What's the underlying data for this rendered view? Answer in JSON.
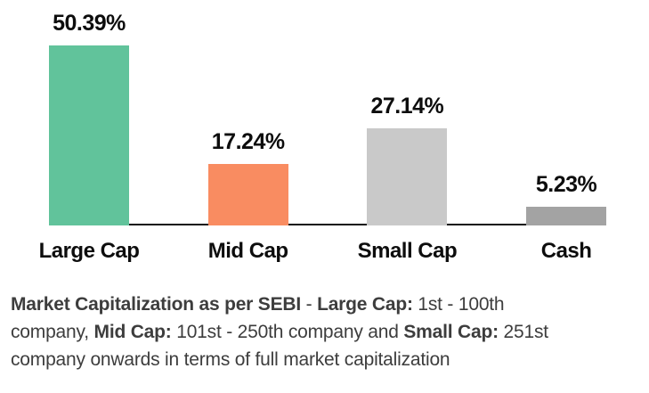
{
  "chart_data": {
    "type": "bar",
    "categories": [
      "Large Cap",
      "Mid Cap",
      "Small Cap",
      "Cash"
    ],
    "values": [
      50.39,
      17.24,
      27.14,
      5.23
    ],
    "value_labels": [
      "50.39%",
      "17.24%",
      "27.14%",
      "5.23%"
    ],
    "bar_colors": [
      "#61C39B",
      "#F98C61",
      "#C9C9C9",
      "#A3A3A3"
    ],
    "ylim": [
      0,
      55
    ],
    "grid": false,
    "legend": "none",
    "axis_line_color": "#111111",
    "value_label_color": "#0d0d0d",
    "category_label_color": "#0d0d0d"
  },
  "footnote": {
    "color": "#3d3d3d",
    "lines": [
      [
        {
          "text": "Market Capitalization as per SEBI",
          "bold": true
        },
        {
          "text": " - ",
          "bold": false
        },
        {
          "text": "Large Cap:",
          "bold": true
        },
        {
          "text": " 1st - 100th",
          "bold": false
        }
      ],
      [
        {
          "text": "company, ",
          "bold": false
        },
        {
          "text": "Mid Cap:",
          "bold": true
        },
        {
          "text": " 101st - 250th company and ",
          "bold": false
        },
        {
          "text": "Small Cap:",
          "bold": true
        },
        {
          "text": " 251st",
          "bold": false
        }
      ],
      [
        {
          "text": "company onwards in terms of full market capitalization",
          "bold": false
        }
      ]
    ]
  }
}
